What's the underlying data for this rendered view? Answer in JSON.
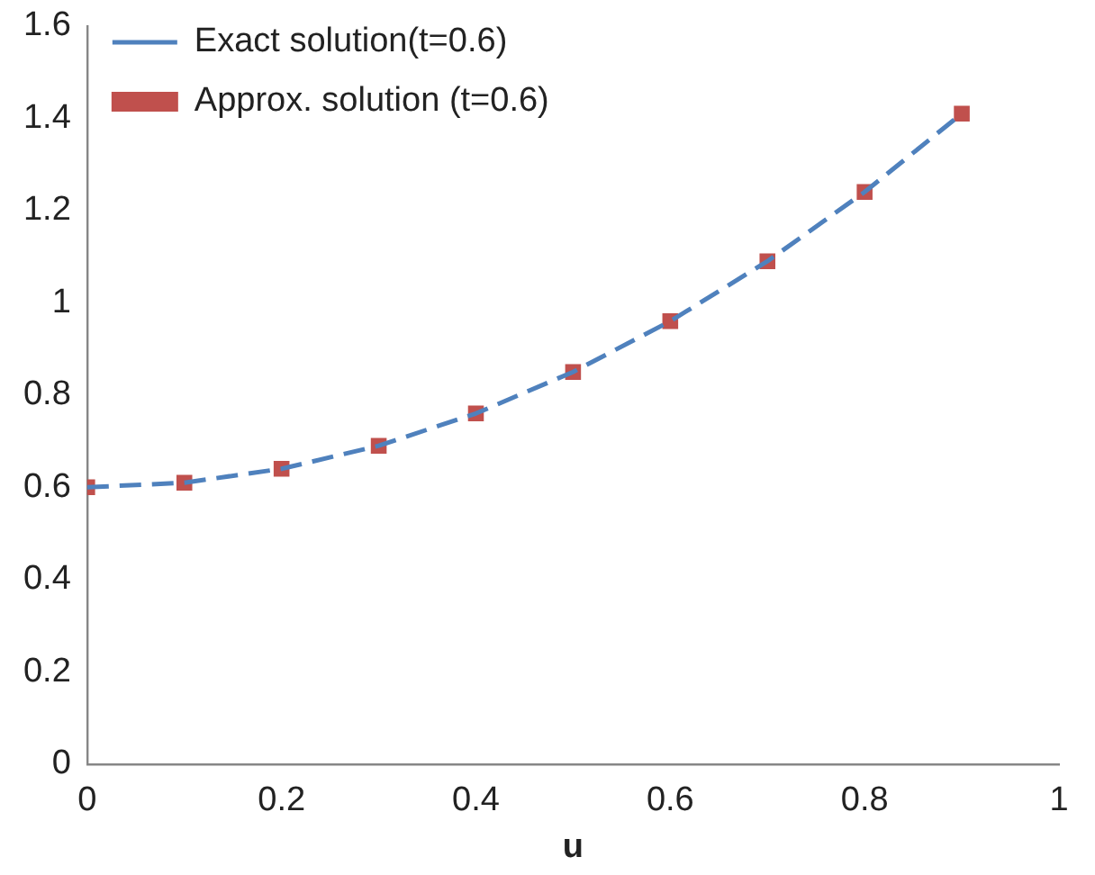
{
  "chart_data": {
    "type": "line",
    "xlabel": "u",
    "x": [
      0,
      0.1,
      0.2,
      0.3,
      0.4,
      0.5,
      0.6,
      0.7,
      0.8,
      0.9
    ],
    "xlim": [
      0,
      1
    ],
    "xticks": [
      0,
      0.2,
      0.4,
      0.6,
      0.8,
      1
    ],
    "ylim": [
      0,
      1.6
    ],
    "yticks": [
      0,
      0.2,
      0.4,
      0.6,
      0.8,
      1,
      1.2,
      1.4,
      1.6
    ],
    "grid": false,
    "legend": "top left",
    "series": [
      {
        "name": "Exact solution(t=0.6)",
        "type": "line",
        "line_style": "dashed",
        "marker": "none",
        "color": "#4f81bd",
        "values": [
          0.6,
          0.61,
          0.64,
          0.69,
          0.76,
          0.85,
          0.96,
          1.09,
          1.24,
          1.41
        ]
      },
      {
        "name": "Approx. solution (t=0.6)",
        "type": "scatter",
        "marker": "square",
        "color": "#c0504d",
        "values": [
          0.6,
          0.61,
          0.64,
          0.69,
          0.76,
          0.85,
          0.96,
          1.09,
          1.24,
          1.41
        ]
      }
    ]
  }
}
